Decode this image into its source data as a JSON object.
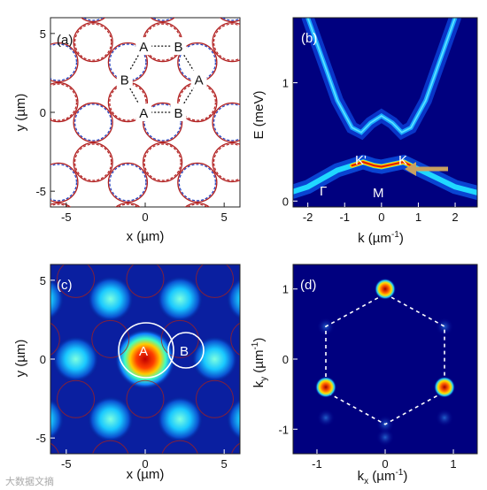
{
  "colors": {
    "dark_blue": "#00007f",
    "cyan": "#1ec8ff",
    "red_line": "#b22222",
    "blue_dash": "#1f3fbf",
    "red_dash": "#e03030",
    "arrow": "#c8a060"
  },
  "chart_data": [
    {
      "panel": "(a)",
      "type": "diagram",
      "xlabel": "x (µm)",
      "ylabel": "y (µm)",
      "xticks": [
        "-5",
        "0",
        "5"
      ],
      "yticks": [
        "5",
        "0",
        "-5"
      ],
      "xlim": [
        -6,
        6
      ],
      "ylim": [
        -6,
        6
      ],
      "sites": [
        {
          "label": "A",
          "x": -0.1,
          "y": 4.2
        },
        {
          "label": "B",
          "x": 2.1,
          "y": 4.2
        },
        {
          "label": "B",
          "x": -1.3,
          "y": 2.1
        },
        {
          "label": "A",
          "x": 3.4,
          "y": 2.1
        },
        {
          "label": "A",
          "x": -0.1,
          "y": 0.0
        },
        {
          "label": "B",
          "x": 2.1,
          "y": 0.0
        }
      ]
    },
    {
      "panel": "(b)",
      "type": "heatmap",
      "xlabel": "k (µm",
      "xlabel_sup": "-1",
      "xlabel_end": ")",
      "ylabel": "E (meV)",
      "xticks": [
        "-2",
        "-1",
        "0",
        "1",
        "2"
      ],
      "yticks": [
        "1",
        "0"
      ],
      "xlim": [
        -2.4,
        2.6
      ],
      "ylim": [
        -0.05,
        1.55
      ],
      "annotations": [
        "K'",
        "K",
        "M",
        "Γ"
      ]
    },
    {
      "panel": "(c)",
      "type": "heatmap",
      "xlabel": "x (µm)",
      "ylabel": "y (µm)",
      "xticks": [
        "-5",
        "0",
        "5"
      ],
      "yticks": [
        "5",
        "0",
        "-5"
      ],
      "xlim": [
        -6,
        6
      ],
      "ylim": [
        -6,
        6
      ],
      "annotations": [
        "A",
        "B"
      ]
    },
    {
      "panel": "(d)",
      "type": "heatmap",
      "xlabel": "k",
      "xlabel_sub": "x",
      "xlabel_unit": " (µm",
      "xlabel_sup": "-1",
      "xlabel_end": ")",
      "ylabel": "k",
      "ylabel_sub": "y",
      "ylabel_unit": " (µm",
      "ylabel_sup": "-1",
      "ylabel_end": ")",
      "xticks": [
        "-1",
        "0",
        "1"
      ],
      "yticks": [
        "1",
        "0",
        "-1"
      ],
      "xlim": [
        -1.35,
        1.35
      ],
      "ylim": [
        -1.35,
        1.35
      ],
      "peaks": [
        {
          "kx": 0.0,
          "ky": 1.0,
          "intensity": 0.85
        },
        {
          "kx": -0.87,
          "ky": -0.4,
          "intensity": 0.9
        },
        {
          "kx": 0.87,
          "ky": -0.4,
          "intensity": 0.95
        }
      ]
    }
  ],
  "watermark": "大数据文摘"
}
